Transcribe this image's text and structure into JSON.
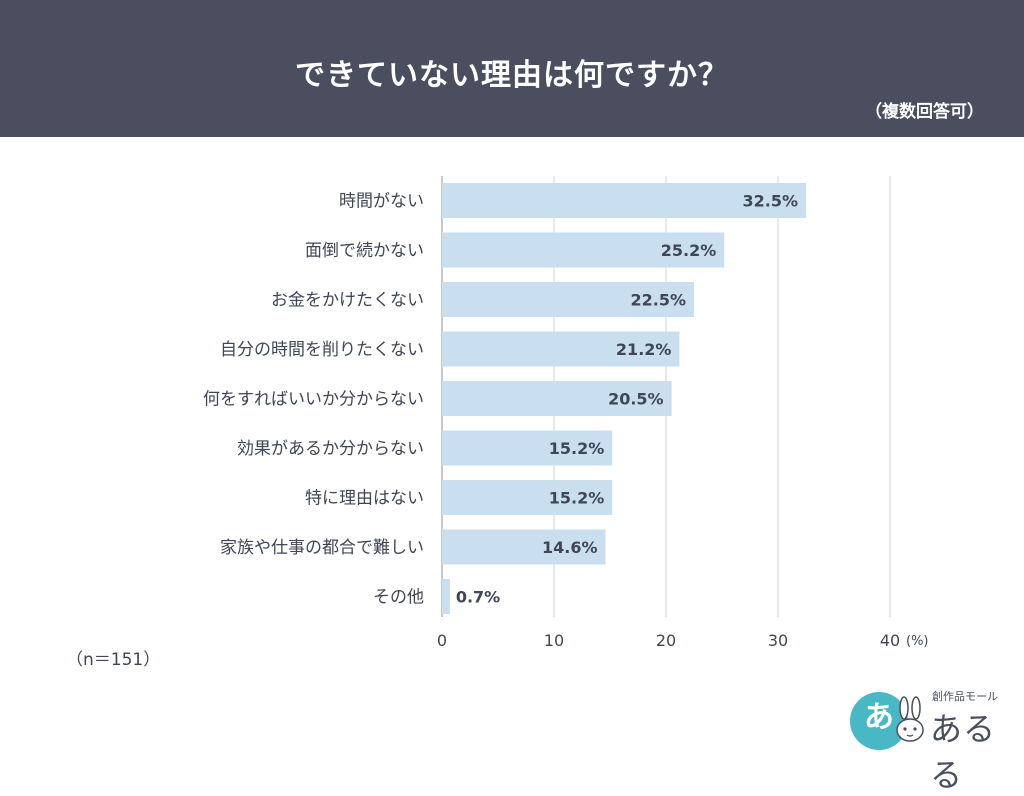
{
  "header": {
    "title": "できていない理由は何ですか？",
    "subtitle": "（複数回答可）"
  },
  "sample": "（n＝151）",
  "colors": {
    "header_bg": "#4a4e5e",
    "bar": "#c9dff0",
    "grid": "#cfd3d8",
    "text": "#3f4655",
    "logo_accent": "#47b8c4"
  },
  "chart_data": {
    "type": "bar",
    "orientation": "horizontal",
    "title": "できていない理由は何ですか？",
    "categories": [
      "時間がない",
      "面倒で続かない",
      "お金をかけたくない",
      "自分の時間を削りたくない",
      "何をすればいいか分からない",
      "効果があるか分からない",
      "特に理由はない",
      "家族や仕事の都合で難しい",
      "その他"
    ],
    "values": [
      32.5,
      25.2,
      22.5,
      21.2,
      20.5,
      15.2,
      15.2,
      14.6,
      0.7
    ],
    "value_labels": [
      "32.5%",
      "25.2%",
      "22.5%",
      "21.2%",
      "20.5%",
      "15.2%",
      "15.2%",
      "14.6%",
      "0.7%"
    ],
    "xticks": [
      0,
      10,
      20,
      30,
      40
    ],
    "xtick_labels": [
      "0",
      "10",
      "20",
      "30",
      "40"
    ],
    "xunit": "(%)",
    "xlim": [
      0,
      40
    ],
    "grid": true
  },
  "logo": {
    "circle_text": "あ",
    "small_text": "創作品モール",
    "main_text": "あるる"
  }
}
